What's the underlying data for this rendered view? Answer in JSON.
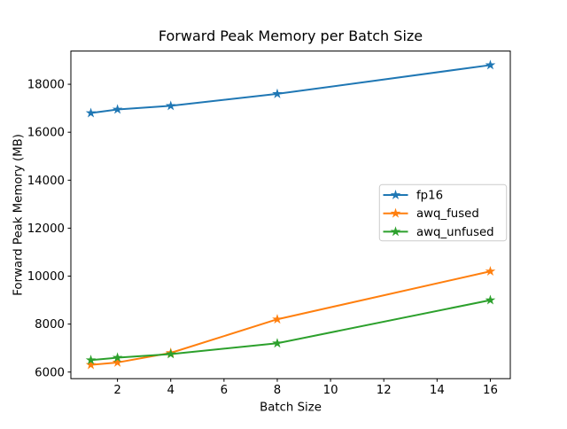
{
  "chart_data": {
    "type": "line",
    "title": "Forward Peak Memory per Batch Size",
    "xlabel": "Batch Size",
    "ylabel": "Forward Peak Memory (MB)",
    "x": [
      1,
      2,
      4,
      8,
      16
    ],
    "series": [
      {
        "name": "fp16",
        "color": "#1f77b4",
        "values": [
          16800,
          16950,
          17100,
          17600,
          18800
        ]
      },
      {
        "name": "awq_fused",
        "color": "#ff7f0e",
        "values": [
          6300,
          6400,
          6800,
          8200,
          10200
        ]
      },
      {
        "name": "awq_unfused",
        "color": "#2ca02c",
        "values": [
          6500,
          6600,
          6750,
          7200,
          9000
        ]
      }
    ],
    "xticks": [
      2,
      4,
      6,
      8,
      10,
      12,
      14,
      16
    ],
    "yticks": [
      6000,
      8000,
      10000,
      12000,
      14000,
      16000,
      18000
    ],
    "xlim": [
      0.25,
      16.75
    ],
    "ylim": [
      5725,
      19385
    ],
    "marker": "star",
    "grid": false,
    "legend_position": "center right",
    "background": "#ffffff",
    "axis_color": "#000000",
    "legend_border_color": "#cccccc"
  }
}
